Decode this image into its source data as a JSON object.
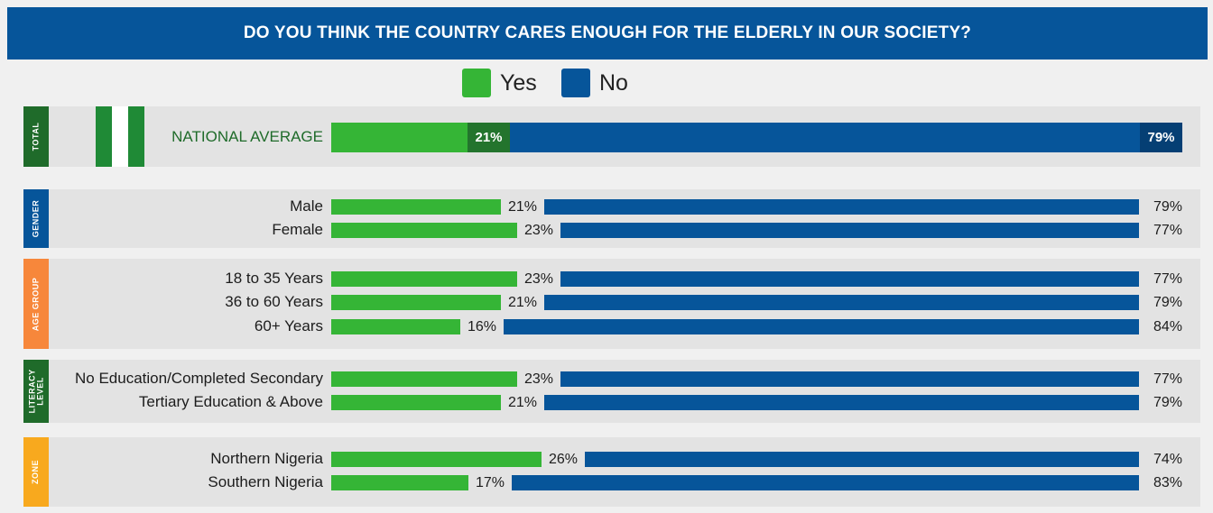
{
  "title": "DO YOU THINK THE COUNTRY CARES ENOUGH FOR THE ELDERLY IN OUR SOCIETY?",
  "legend": {
    "yes_label": "Yes",
    "no_label": "No"
  },
  "colors": {
    "yes": "#35b536",
    "no": "#06559a",
    "header": "#06559a",
    "total_band": "#1f6b2a",
    "gender_band": "#06559a",
    "age_band": "#f7873b",
    "literacy_band": "#1f6b2a",
    "zone_band": "#f8a91e",
    "yes_badge": "#23742d",
    "no_badge": "#053f74"
  },
  "groups": {
    "total": "TOTAL",
    "gender": "GENDER",
    "age": "AGE GROUP",
    "literacy": "LITERACY LEVEL",
    "zone": "ZONE"
  },
  "chart_data": {
    "type": "bar",
    "stacked": true,
    "orientation": "horizontal",
    "title": "DO YOU THINK THE COUNTRY CARES ENOUGH FOR THE ELDERLY IN OUR SOCIETY?",
    "series_names": [
      "Yes",
      "No"
    ],
    "rows": [
      {
        "group": "TOTAL",
        "label": "NATIONAL AVERAGE",
        "yes": 21,
        "no": 79,
        "yes_text": "21%",
        "no_text": "79%"
      },
      {
        "group": "GENDER",
        "label": "Male",
        "yes": 21,
        "no": 79,
        "yes_text": "21%",
        "no_text": "79%"
      },
      {
        "group": "GENDER",
        "label": "Female",
        "yes": 23,
        "no": 77,
        "yes_text": "23%",
        "no_text": "77%"
      },
      {
        "group": "AGE GROUP",
        "label": "18 to 35 Years",
        "yes": 23,
        "no": 77,
        "yes_text": "23%",
        "no_text": "77%"
      },
      {
        "group": "AGE GROUP",
        "label": "36 to 60 Years",
        "yes": 21,
        "no": 79,
        "yes_text": "21%",
        "no_text": "79%"
      },
      {
        "group": "AGE GROUP",
        "label": "60+ Years",
        "yes": 16,
        "no": 84,
        "yes_text": "16%",
        "no_text": "84%"
      },
      {
        "group": "LITERACY LEVEL",
        "label": "No Education/Completed Secondary",
        "yes": 23,
        "no": 77,
        "yes_text": "23%",
        "no_text": "77%"
      },
      {
        "group": "LITERACY LEVEL",
        "label": "Tertiary Education & Above",
        "yes": 21,
        "no": 79,
        "yes_text": "21%",
        "no_text": "79%"
      },
      {
        "group": "ZONE",
        "label": "Northern Nigeria",
        "yes": 26,
        "no": 74,
        "yes_text": "26%",
        "no_text": "74%"
      },
      {
        "group": "ZONE",
        "label": "Southern Nigeria",
        "yes": 17,
        "no": 83,
        "yes_text": "17%",
        "no_text": "83%"
      }
    ]
  }
}
